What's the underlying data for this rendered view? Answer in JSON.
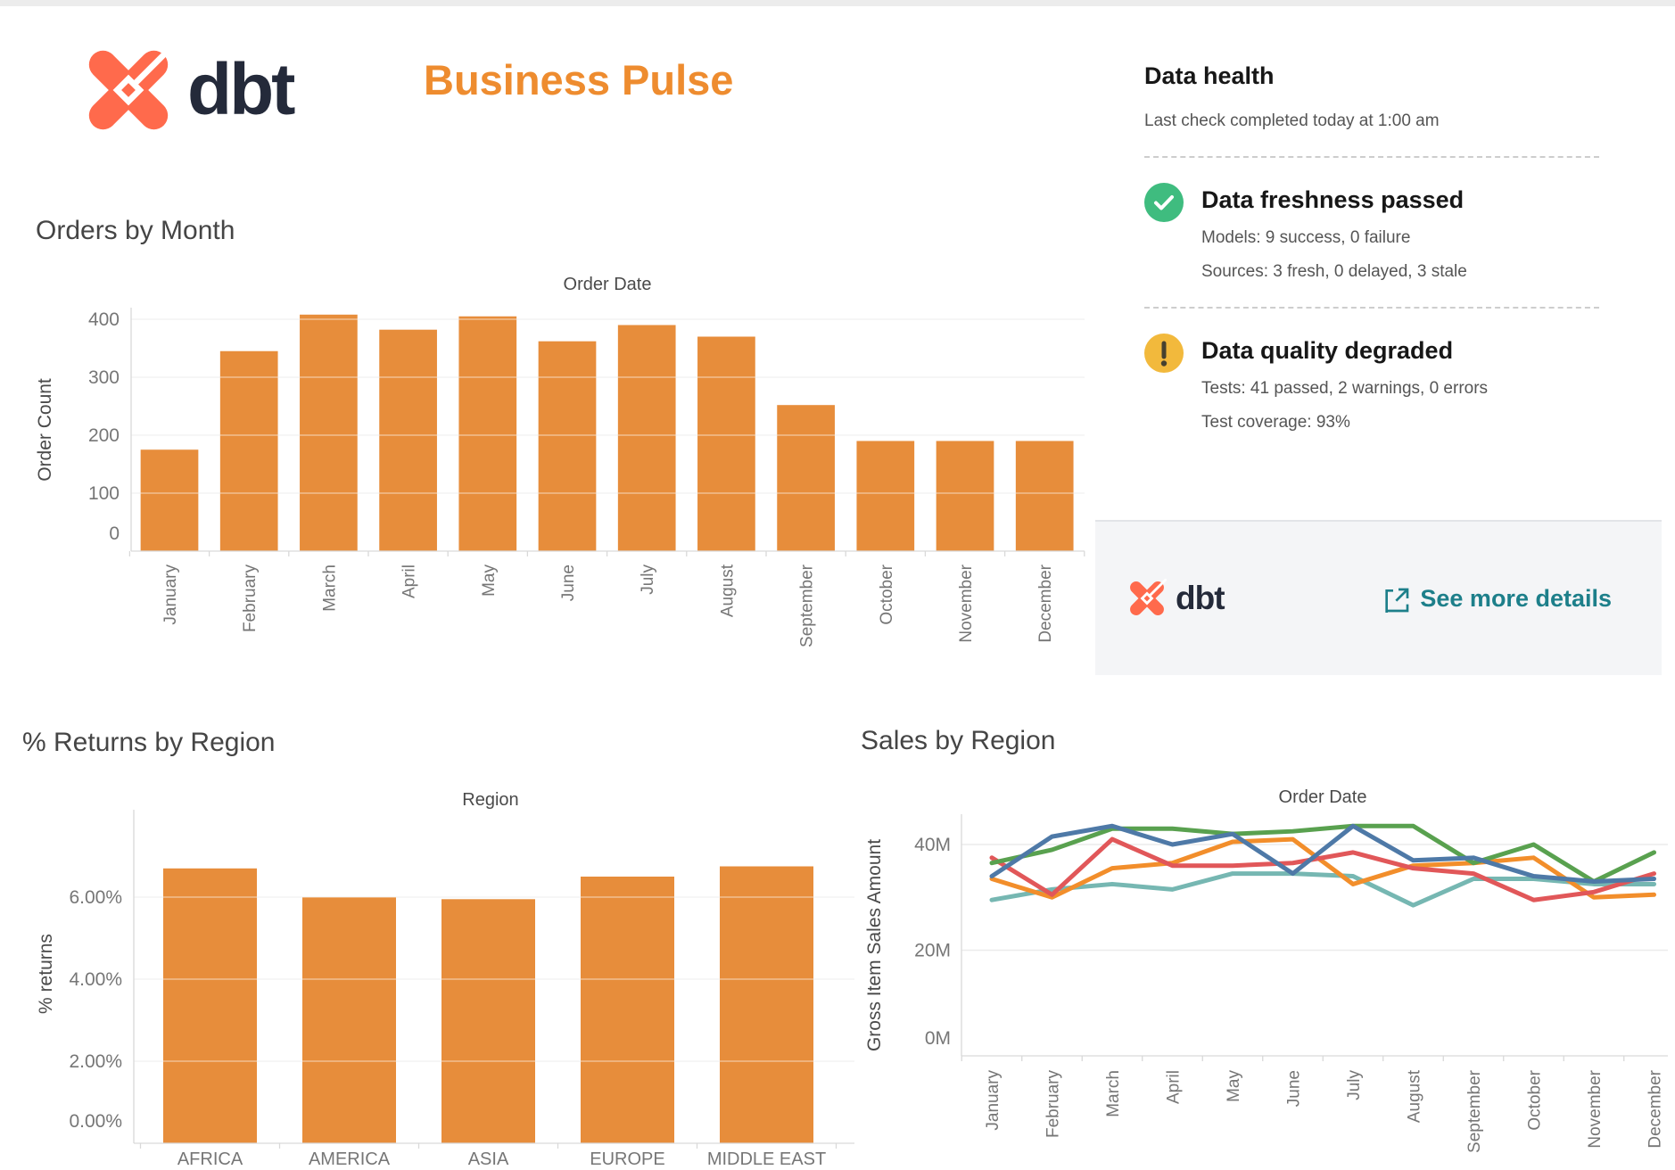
{
  "header": {
    "brand": "dbt",
    "title": "Business Pulse"
  },
  "data_health": {
    "title": "Data health",
    "subtitle": "Last check completed today at 1:00 am",
    "items": [
      {
        "status": "passed",
        "icon": "check-icon",
        "color": "#3fbc7f",
        "title": "Data freshness passed",
        "lines": [
          "Models: 9 success, 0 failure",
          "Sources: 3 fresh, 0 delayed, 3 stale"
        ]
      },
      {
        "status": "warning",
        "icon": "warning-icon",
        "color": "#f2b93c",
        "title": "Data quality degraded",
        "lines": [
          "Tests: 41 passed, 2 warnings, 0 errors",
          "Test coverage: 93%"
        ]
      }
    ],
    "footer": {
      "brand": "dbt",
      "link": "See more details",
      "link_color": "#1d7f8a"
    }
  },
  "chart_data": [
    {
      "id": "orders",
      "type": "bar",
      "title": "Orders by Month",
      "chart_title": "Order Date",
      "ylabel": "Order Count",
      "categories": [
        "January",
        "February",
        "March",
        "April",
        "May",
        "June",
        "July",
        "August",
        "September",
        "October",
        "November",
        "December"
      ],
      "values": [
        175,
        345,
        408,
        382,
        405,
        362,
        390,
        370,
        252,
        190,
        190,
        190
      ],
      "ytick_labels": [
        "0",
        "100",
        "200",
        "300",
        "400"
      ],
      "ytick_values": [
        0,
        100,
        200,
        300,
        400
      ],
      "ylim": [
        0,
        430
      ],
      "grid": true,
      "bar_color": "#e78d3b"
    },
    {
      "id": "returns",
      "type": "bar",
      "title": "% Returns by Region",
      "chart_title": "Region",
      "ylabel": "% returns",
      "categories": [
        "AFRICA",
        "AMERICA",
        "ASIA",
        "EUROPE",
        "MIDDLE EAST"
      ],
      "values": [
        6.7,
        6.0,
        5.95,
        6.5,
        6.75
      ],
      "ytick_labels": [
        "0.00%",
        "2.00%",
        "4.00%",
        "6.00%"
      ],
      "ytick_values": [
        0,
        2,
        4,
        6
      ],
      "ylim": [
        0,
        7.6
      ],
      "grid": true,
      "bar_color": "#e78d3b"
    },
    {
      "id": "sales",
      "type": "line",
      "title": "Sales by Region",
      "chart_title": "Order Date",
      "ylabel": "Gross Item Sales Amount",
      "categories": [
        "January",
        "February",
        "March",
        "April",
        "May",
        "June",
        "July",
        "August",
        "September",
        "October",
        "November",
        "December"
      ],
      "series": [
        {
          "name": "blue",
          "color": "#4e79a7",
          "values": [
            34,
            41.5,
            43.5,
            40,
            42,
            34.5,
            43.5,
            37,
            37.5,
            34,
            33,
            33.5
          ]
        },
        {
          "name": "green",
          "color": "#59a14f",
          "values": [
            36.5,
            39,
            43,
            43,
            42,
            42.5,
            43.5,
            43.5,
            36.5,
            40,
            33,
            38.5
          ]
        },
        {
          "name": "red",
          "color": "#e15759",
          "values": [
            37.5,
            30.5,
            41,
            36,
            36,
            36.5,
            38.5,
            35.5,
            34.5,
            29.5,
            31,
            34.5
          ]
        },
        {
          "name": "orange",
          "color": "#f28e2b",
          "values": [
            33.5,
            30,
            35.5,
            36.5,
            40.5,
            41,
            32.5,
            36,
            36.5,
            37.5,
            30,
            30.5
          ]
        },
        {
          "name": "teal",
          "color": "#76b7b2",
          "values": [
            29.5,
            31.5,
            32.5,
            31.5,
            34.5,
            34.5,
            34,
            28.5,
            33.5,
            33.5,
            32.5,
            32.5
          ]
        }
      ],
      "ytick_labels": [
        "0M",
        "20M",
        "40M"
      ],
      "ytick_values": [
        0,
        20,
        40
      ],
      "ylim": [
        0,
        46
      ],
      "grid": true,
      "legend": "none"
    }
  ]
}
